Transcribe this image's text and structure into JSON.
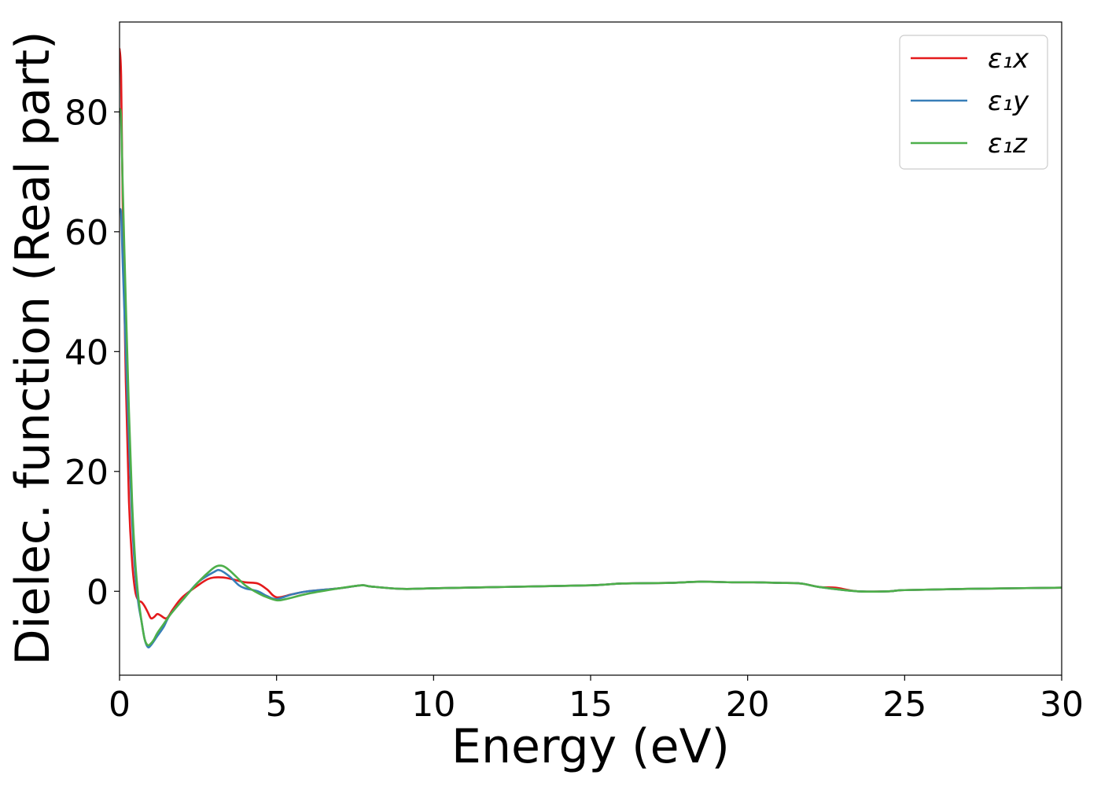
{
  "chart_data": {
    "type": "line",
    "title": "",
    "xlabel": "Energy (eV)",
    "ylabel": "Dielec. function (Real part)",
    "xlim": [
      0,
      30
    ],
    "ylim": [
      -14,
      95
    ],
    "xticks": [
      0,
      5,
      10,
      15,
      20,
      25,
      30
    ],
    "yticks": [
      0,
      20,
      40,
      60,
      80
    ],
    "grid": false,
    "legend_position": "top-right",
    "series": [
      {
        "name": "ε₁x",
        "color": "#e41a1c",
        "x": [
          0.0,
          0.05,
          0.1,
          0.2,
          0.3,
          0.4,
          0.5,
          0.6,
          0.7,
          0.8,
          0.9,
          1.0,
          1.1,
          1.2,
          1.3,
          1.5,
          1.7,
          2.0,
          2.5,
          2.8,
          3.0,
          3.3,
          3.6,
          4.0,
          4.4,
          4.7,
          5.0,
          5.5,
          6.0,
          7.0,
          7.7,
          8.0,
          9.0,
          10.0,
          12.0,
          15.0,
          16.0,
          17.5,
          18.5,
          19.5,
          20.2,
          21.0,
          21.7,
          22.3,
          22.8,
          23.5,
          24.5,
          25.0,
          27.0,
          30.0
        ],
        "y": [
          90.5,
          86,
          65,
          35,
          15,
          5,
          0,
          -1.5,
          -1.8,
          -2.5,
          -3.5,
          -4.5,
          -4.3,
          -3.8,
          -4.0,
          -4.5,
          -3.0,
          -1.0,
          1.0,
          2.0,
          2.3,
          2.3,
          2.0,
          1.5,
          1.3,
          0.3,
          -1.0,
          -0.5,
          0.0,
          0.5,
          1.0,
          0.8,
          0.4,
          0.5,
          0.7,
          1.0,
          1.3,
          1.4,
          1.6,
          1.5,
          1.5,
          1.4,
          1.3,
          0.7,
          0.6,
          0.0,
          0.0,
          0.2,
          0.4,
          0.6
        ]
      },
      {
        "name": "ε₁y",
        "color": "#377eb8",
        "x": [
          0.0,
          0.05,
          0.1,
          0.2,
          0.3,
          0.4,
          0.5,
          0.6,
          0.7,
          0.8,
          0.9,
          1.0,
          1.2,
          1.4,
          1.6,
          2.0,
          2.5,
          3.0,
          3.2,
          3.5,
          3.8,
          4.0,
          4.4,
          4.7,
          5.0,
          5.5,
          6.0,
          7.0,
          7.7,
          8.0,
          9.0,
          10.0,
          12.0,
          15.0,
          16.0,
          17.5,
          18.5,
          19.5,
          20.2,
          21.0,
          21.7,
          22.3,
          23.5,
          24.5,
          25.0,
          27.0,
          30.0
        ],
        "y": [
          63.5,
          63,
          55,
          40,
          25,
          12,
          3,
          -2,
          -5,
          -8,
          -9.3,
          -9.0,
          -7.5,
          -6.0,
          -4.0,
          -1.5,
          1.5,
          3.2,
          3.5,
          2.5,
          1.0,
          0.5,
          0.0,
          -0.8,
          -1.3,
          -0.5,
          0.0,
          0.5,
          1.0,
          0.8,
          0.4,
          0.5,
          0.7,
          1.0,
          1.3,
          1.4,
          1.6,
          1.5,
          1.5,
          1.4,
          1.3,
          0.7,
          0.0,
          0.0,
          0.2,
          0.4,
          0.6
        ]
      },
      {
        "name": "ε₁z",
        "color": "#4daf4a",
        "x": [
          0.0,
          0.05,
          0.1,
          0.2,
          0.3,
          0.4,
          0.5,
          0.6,
          0.7,
          0.8,
          0.9,
          1.0,
          1.1,
          1.2,
          1.4,
          1.6,
          2.0,
          2.5,
          2.9,
          3.1,
          3.3,
          3.5,
          3.8,
          4.0,
          4.3,
          4.6,
          5.0,
          5.3,
          6.0,
          7.0,
          7.7,
          8.0,
          9.0,
          10.0,
          12.0,
          15.0,
          16.0,
          17.5,
          18.5,
          19.5,
          20.2,
          21.0,
          21.7,
          22.3,
          23.5,
          24.5,
          25.0,
          27.0,
          30.0
        ],
        "y": [
          80.5,
          79,
          68,
          48,
          30,
          15,
          5,
          -1,
          -5,
          -8,
          -9.0,
          -8.7,
          -8.0,
          -7.0,
          -5.5,
          -4.0,
          -1.5,
          1.5,
          3.5,
          4.2,
          4.2,
          3.5,
          2.0,
          1.0,
          0.0,
          -0.8,
          -1.5,
          -1.3,
          -0.4,
          0.5,
          1.0,
          0.8,
          0.4,
          0.5,
          0.7,
          1.0,
          1.3,
          1.4,
          1.6,
          1.5,
          1.5,
          1.4,
          1.3,
          0.7,
          0.0,
          0.0,
          0.2,
          0.4,
          0.6
        ]
      }
    ]
  }
}
